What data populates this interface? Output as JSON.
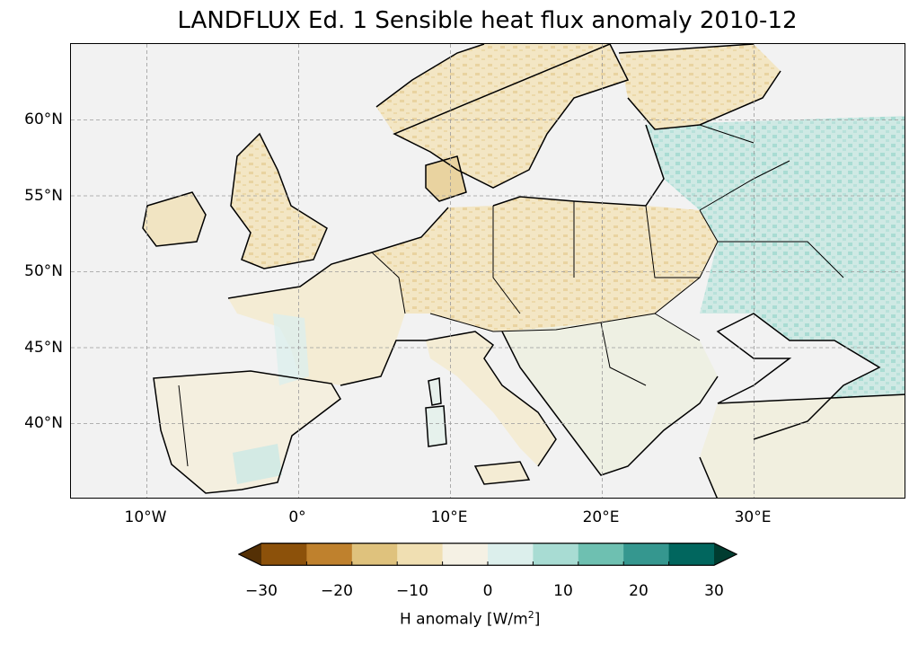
{
  "title": "LANDFLUX Ed. 1 Sensible heat flux anomaly 2010-12",
  "map": {
    "region": "Europe",
    "projection": "PlateCarree",
    "extent": {
      "lon_min": -15,
      "lon_max": 40,
      "lat_min": 35,
      "lat_max": 65
    },
    "lat_ticks": [
      "60°N",
      "55°N",
      "50°N",
      "45°N",
      "40°N"
    ],
    "lon_ticks": [
      "10°W",
      "0°",
      "10°E",
      "20°E",
      "30°E"
    ],
    "gridlines": true,
    "ocean_color": "#f2f2f2"
  },
  "colorbar": {
    "label_text": "H anomaly [W/m",
    "label_sup": "2",
    "label_close": "]",
    "ticks": [
      "−30",
      "−20",
      "−10",
      "0",
      "10",
      "20",
      "30"
    ],
    "colors": [
      "#543005",
      "#8c510a",
      "#bf812d",
      "#dfc27d",
      "#f0dfb2",
      "#f5f1e4",
      "#dcefec",
      "#a8dcd3",
      "#6ec0b1",
      "#35978f",
      "#01665e",
      "#003c30"
    ],
    "extend": "both"
  }
}
